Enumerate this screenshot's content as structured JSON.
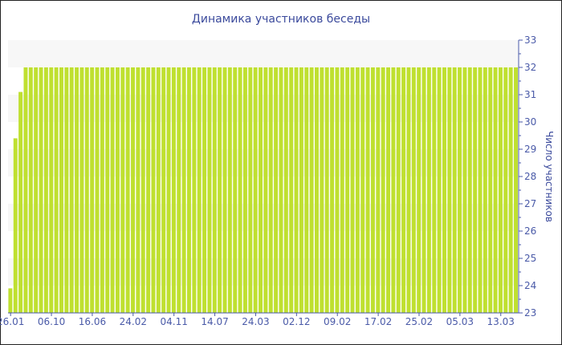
{
  "chart_data": {
    "type": "bar",
    "title": "Динамика участников беседы",
    "ylabel": "Число участников",
    "xlabel": "",
    "ylim": [
      23,
      33
    ],
    "y_ticks": [
      23,
      24,
      25,
      26,
      27,
      28,
      29,
      30,
      31,
      32,
      33
    ],
    "y_axis_side": "right",
    "x_tick_labels": [
      "26.01",
      "06.10",
      "16.06",
      "24.02",
      "04.11",
      "14.07",
      "24.03",
      "02.12",
      "09.02",
      "17.02",
      "25.02",
      "05.03",
      "13.03"
    ],
    "x_tick_every_bars": 8,
    "values": [
      23.9,
      29.4,
      31.1,
      32,
      32,
      32,
      32,
      32,
      32,
      32,
      32,
      32,
      32,
      32,
      32,
      32,
      32,
      32,
      32,
      32,
      32,
      32,
      32,
      32,
      32,
      32,
      32,
      32,
      32,
      32,
      32,
      32,
      32,
      32,
      32,
      32,
      32,
      32,
      32,
      32,
      32,
      32,
      32,
      32,
      32,
      32,
      32,
      32,
      32,
      32,
      32,
      32,
      32,
      32,
      32,
      32,
      32,
      32,
      32,
      32,
      32,
      32,
      32,
      32,
      32,
      32,
      32,
      32,
      32,
      32,
      32,
      32,
      32,
      32,
      32,
      32,
      32,
      32,
      32,
      32,
      32,
      32,
      32,
      32,
      32,
      32,
      32,
      32,
      32,
      32,
      32,
      32,
      32,
      32,
      32,
      32,
      32,
      32,
      32,
      32
    ],
    "grid": "alternating horizontal bands",
    "colors": {
      "bar": "#bfe030",
      "axis": "#4a5aa8",
      "band": "#f7f7f7"
    }
  }
}
